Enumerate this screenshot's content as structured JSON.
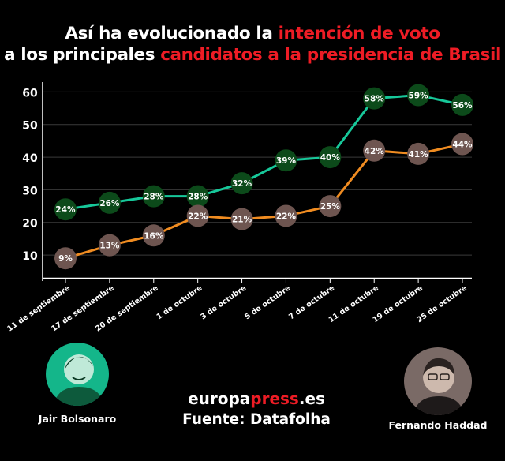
{
  "header": {
    "title_line1_white": "Así ha evolucionado la ",
    "title_line1_red": "intención de voto",
    "title_line2_white": "a los principales ",
    "title_line2_red": "candidatos a la presidencia de Brasil"
  },
  "chart_data": {
    "type": "line",
    "title": "Así ha evolucionado la intención de voto a los principales candidatos a la presidencia de Brasil",
    "categories": [
      "11 de septiembre",
      "17 de septiembre",
      "20 de septiembre",
      "1 de octubre",
      "3 de octubre",
      "5 de octubre",
      "7 de octubre",
      "11 de octubre",
      "19 de octubre",
      "25 de octubre"
    ],
    "series": [
      {
        "name": "Jair Bolsonaro",
        "color": "#17c89a",
        "marker_color": "#0c4a1a",
        "values": [
          24,
          26,
          28,
          28,
          32,
          39,
          40,
          58,
          59,
          56
        ],
        "labels": [
          "24%",
          "26%",
          "28%",
          "28%",
          "32%",
          "39%",
          "40%",
          "58%",
          "59%",
          "56%"
        ]
      },
      {
        "name": "Fernando Haddad",
        "color": "#f08c21",
        "marker_color": "#6e5550",
        "values": [
          9,
          13,
          16,
          22,
          21,
          22,
          25,
          42,
          41,
          44
        ],
        "labels": [
          "9%",
          "13%",
          "16%",
          "22%",
          "21%",
          "22%",
          "25%",
          "42%",
          "41%",
          "44%"
        ]
      }
    ],
    "yticks": [
      10,
      20,
      30,
      40,
      50,
      60
    ],
    "ylim": [
      3,
      63
    ],
    "grid": true,
    "xlabel": "",
    "ylabel": ""
  },
  "candidates": {
    "left_name": "Jair Bolsonaro",
    "right_name": "Fernando Haddad"
  },
  "footer": {
    "brand_white": "europa",
    "brand_red": "press",
    "brand_suffix": ".es",
    "source": "Fuente: Datafolha"
  }
}
